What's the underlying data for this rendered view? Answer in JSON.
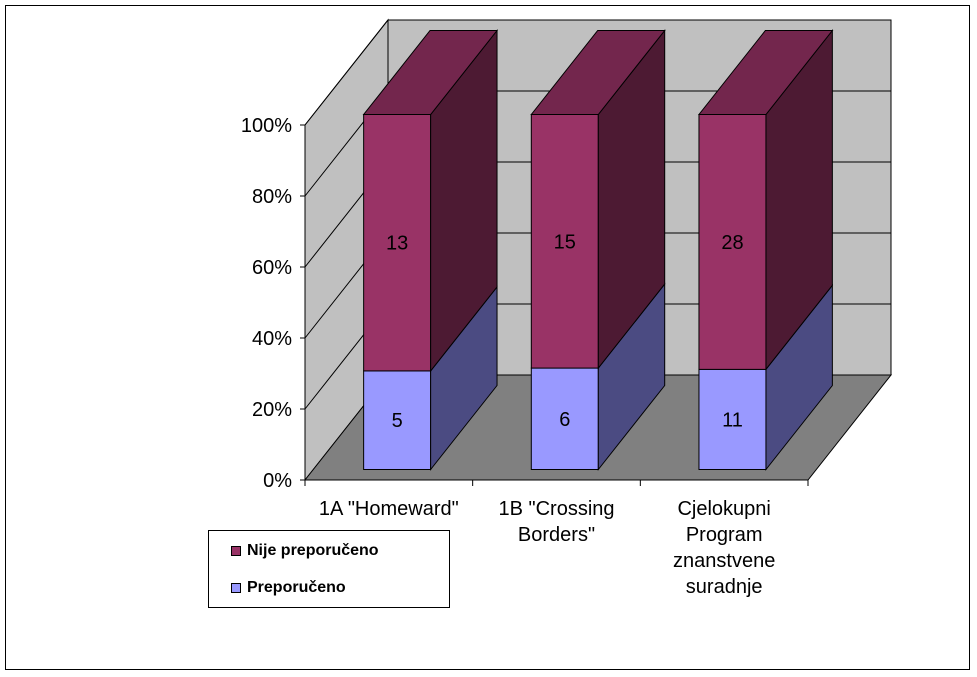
{
  "chart_data": {
    "type": "bar",
    "stacked": "percent",
    "three_d": true,
    "categories": [
      [
        "1A \"Homeward\""
      ],
      [
        "1B \"Crossing",
        "Borders\""
      ],
      [
        "Cjelokupni",
        "Program",
        "znanstvene",
        "suradnje"
      ]
    ],
    "series": [
      {
        "name": "Preporučeno",
        "values": [
          5,
          6,
          11
        ],
        "color": "#9999FF",
        "side_color": "#4B4B82"
      },
      {
        "name": "Nije preporučeno",
        "values": [
          13,
          15,
          28
        ],
        "color": "#993366",
        "side_color": "#4D1A33"
      }
    ],
    "y_ticks": [
      "0%",
      "20%",
      "40%",
      "60%",
      "80%",
      "100%"
    ],
    "ylim": [
      0,
      100
    ],
    "grid": true,
    "legend_position": "bottom-left",
    "colors": {
      "wall": "#C0C0C0",
      "floor": "#808080",
      "grid": "#000000"
    }
  },
  "legend": [
    {
      "label": "Nije preporučeno",
      "color": "#993366"
    },
    {
      "label": "Preporučeno",
      "color": "#9999FF"
    }
  ]
}
